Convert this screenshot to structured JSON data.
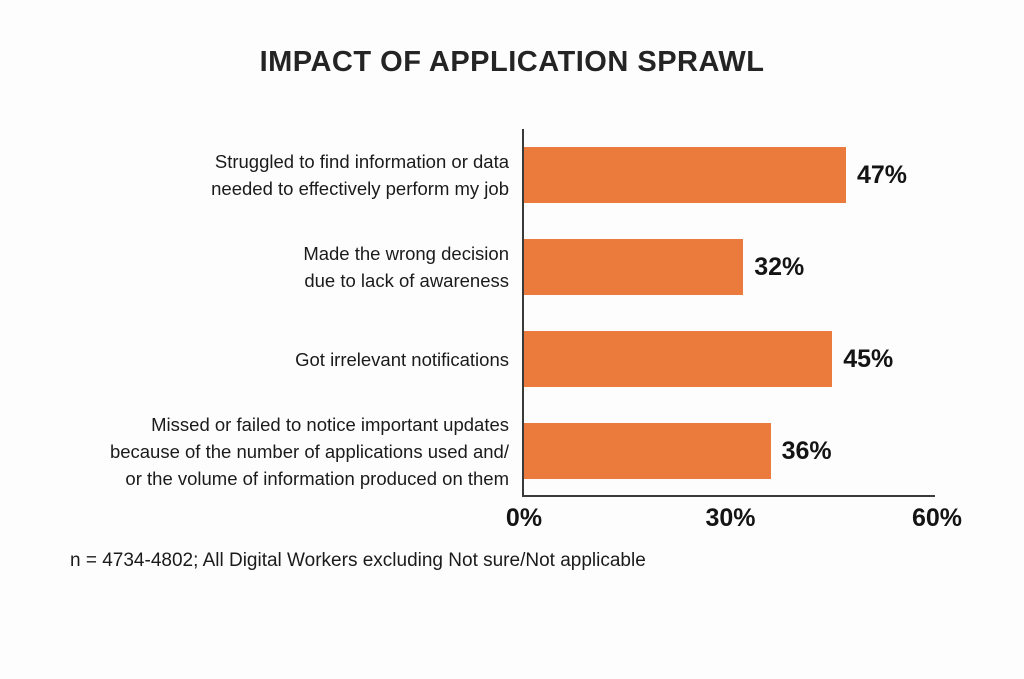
{
  "title": "IMPACT OF APPLICATION SPRAWL",
  "footnote": "n = 4734-4802; All Digital Workers excluding Not sure/Not applicable",
  "colors": {
    "bar": "#EB7B3C",
    "axis": "#3A3A3A",
    "text": "#1D1D1D"
  },
  "chart_data": {
    "type": "bar",
    "orientation": "horizontal",
    "title": "IMPACT OF APPLICATION SPRAWL",
    "categories": [
      "Struggled to find information or data needed to effectively perform my job",
      "Made the wrong decision due to lack of awareness",
      "Got irrelevant notifications",
      "Missed or failed to notice important updates because of the number of applications used and/or the volume of information produced on them"
    ],
    "category_lines": [
      [
        "Struggled to find information or data",
        "needed to effectively perform my job"
      ],
      [
        "Made the wrong decision",
        "due to lack of awareness"
      ],
      [
        "Got irrelevant notifications"
      ],
      [
        "Missed or failed to notice important updates",
        "because of the number of applications used and/",
        "or the volume of information produced on them"
      ]
    ],
    "values": [
      47,
      32,
      45,
      36
    ],
    "value_labels": [
      "47%",
      "32%",
      "45%",
      "36%"
    ],
    "xlabel": "",
    "ylabel": "",
    "xlim": [
      0,
      60
    ],
    "x_ticks": [
      "0%",
      "30%",
      "60%"
    ],
    "x_tick_values": [
      0,
      30,
      60
    ],
    "grid": false,
    "legend": null,
    "footnote": "n = 4734-4802; All Digital Workers excluding Not sure/Not applicable"
  }
}
